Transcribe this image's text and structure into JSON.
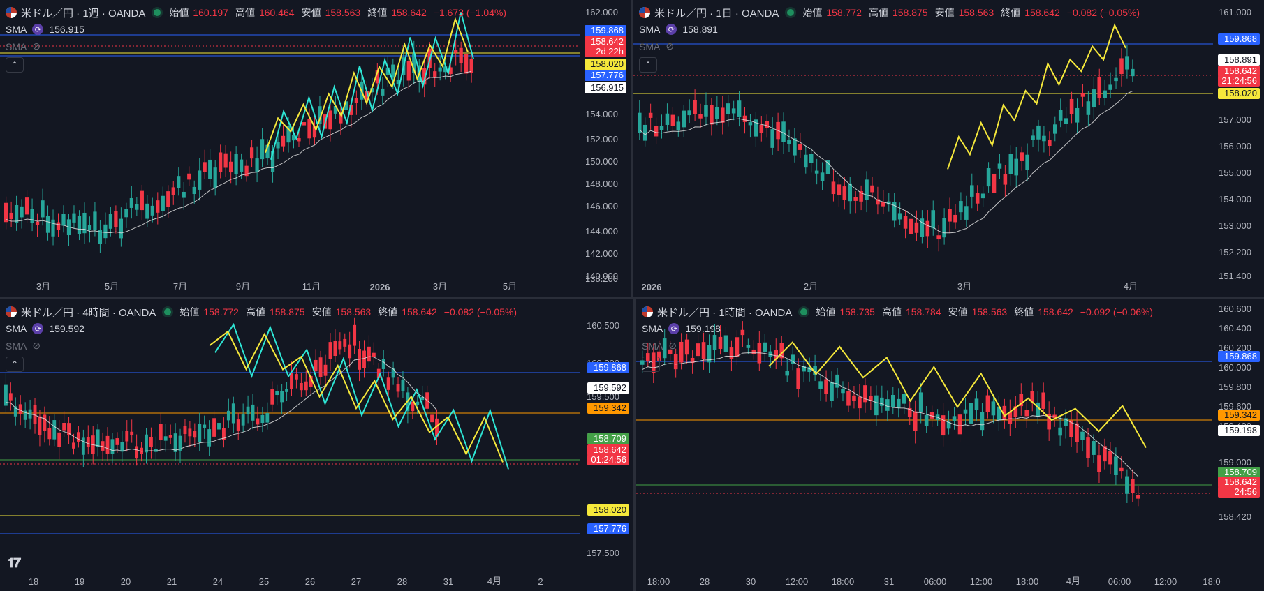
{
  "panes": [
    {
      "id": "weekly",
      "symbol": "米ドル／円 · 1週 · OANDA",
      "ohlc": {
        "open_label": "始値",
        "open": "160.197",
        "high_label": "高値",
        "high": "160.464",
        "low_label": "安値",
        "low": "158.563",
        "close_label": "終値",
        "close": "158.642",
        "change": "−1.673 (−1.04%)"
      },
      "sma1": {
        "label": "SMA",
        "value": "156.915"
      },
      "sma2": {
        "label": "SMA"
      },
      "price_axis": [
        "162.000",
        "154.000",
        "152.000",
        "150.000",
        "148.000",
        "146.000",
        "144.000",
        "142.000",
        "140.000",
        "138.200"
      ],
      "time_axis": [
        "3月",
        "5月",
        "7月",
        "9月",
        "11月",
        "2026",
        "3月",
        "5月"
      ],
      "tags": [
        {
          "text": "159.868",
          "bg": "#2962ff",
          "fg": "#ffffff"
        },
        {
          "text": "158.642",
          "bg": "#f23645",
          "fg": "#ffffff"
        },
        {
          "text": "2d 22h",
          "bg": "#f23645",
          "fg": "#ffffff"
        },
        {
          "text": "158.020",
          "bg": "#f5e83b",
          "fg": "#131722"
        },
        {
          "text": "157.776",
          "bg": "#2962ff",
          "fg": "#ffffff"
        },
        {
          "text": "156.915",
          "bg": "#ffffff",
          "fg": "#131722"
        }
      ]
    },
    {
      "id": "daily",
      "symbol": "米ドル／円 · 1日 · OANDA",
      "ohlc": {
        "open_label": "始値",
        "open": "158.772",
        "high_label": "高値",
        "high": "158.875",
        "low_label": "安値",
        "low": "158.563",
        "close_label": "終値",
        "close": "158.642",
        "change": "−0.082 (−0.05%)"
      },
      "sma1": {
        "label": "SMA",
        "value": "158.891"
      },
      "sma2": {
        "label": "SMA"
      },
      "price_axis": [
        "161.000",
        "157.000",
        "156.000",
        "155.000",
        "154.000",
        "153.000",
        "152.200",
        "151.400"
      ],
      "time_axis": [
        "2026",
        "2月",
        "3月",
        "4月"
      ],
      "tags": [
        {
          "text": "159.868",
          "bg": "#2962ff",
          "fg": "#ffffff"
        },
        {
          "text": "158.891",
          "bg": "#ffffff",
          "fg": "#131722"
        },
        {
          "text": "158.642",
          "bg": "#f23645",
          "fg": "#ffffff"
        },
        {
          "text": "21:24:56",
          "bg": "#f23645",
          "fg": "#ffffff"
        },
        {
          "text": "158.020",
          "bg": "#f5e83b",
          "fg": "#131722"
        }
      ]
    },
    {
      "id": "h4",
      "symbol": "米ドル／円 · 4時間 · OANDA",
      "ohlc": {
        "open_label": "始値",
        "open": "158.772",
        "high_label": "高値",
        "high": "158.875",
        "low_label": "安値",
        "low": "158.563",
        "close_label": "終値",
        "close": "158.642",
        "change": "−0.082 (−0.05%)"
      },
      "sma1": {
        "label": "SMA",
        "value": "159.592"
      },
      "sma2": {
        "label": "SMA"
      },
      "price_axis": [
        "160.500",
        "160.000",
        "159.500",
        "159.000",
        "157.500"
      ],
      "time_axis": [
        "18",
        "19",
        "20",
        "21",
        "24",
        "25",
        "26",
        "27",
        "28",
        "31",
        "4月",
        "2"
      ],
      "tags": [
        {
          "text": "159.868",
          "bg": "#2962ff",
          "fg": "#ffffff"
        },
        {
          "text": "159.592",
          "bg": "#ffffff",
          "fg": "#131722"
        },
        {
          "text": "159.342",
          "bg": "#ff9800",
          "fg": "#131722"
        },
        {
          "text": "158.709",
          "bg": "#43a047",
          "fg": "#ffffff"
        },
        {
          "text": "158.642",
          "bg": "#f23645",
          "fg": "#ffffff"
        },
        {
          "text": "01:24:56",
          "bg": "#f23645",
          "fg": "#ffffff"
        },
        {
          "text": "158.020",
          "bg": "#f5e83b",
          "fg": "#131722"
        },
        {
          "text": "157.776",
          "bg": "#2962ff",
          "fg": "#ffffff"
        }
      ]
    },
    {
      "id": "h1",
      "symbol": "米ドル／円 · 1時間 · OANDA",
      "ohlc": {
        "open_label": "始値",
        "open": "158.735",
        "high_label": "高値",
        "high": "158.784",
        "low_label": "安値",
        "low": "158.563",
        "close_label": "終値",
        "close": "158.642",
        "change": "−0.092 (−0.06%)"
      },
      "sma1": {
        "label": "SMA",
        "value": "159.198"
      },
      "sma2": {
        "label": "SMA"
      },
      "price_axis": [
        "160.600",
        "160.400",
        "160.200",
        "160.000",
        "159.800",
        "159.600",
        "159.400",
        "159.000",
        "158.800",
        "158.420"
      ],
      "time_axis": [
        "18:00",
        "28",
        "30",
        "12:00",
        "18:00",
        "31",
        "06:00",
        "12:00",
        "18:00",
        "4月",
        "06:00",
        "12:00",
        "18:0"
      ],
      "tags": [
        {
          "text": "159.868",
          "bg": "#2962ff",
          "fg": "#ffffff"
        },
        {
          "text": "159.342",
          "bg": "#ff9800",
          "fg": "#131722"
        },
        {
          "text": "159.198",
          "bg": "#ffffff",
          "fg": "#131722"
        },
        {
          "text": "158.709",
          "bg": "#43a047",
          "fg": "#ffffff"
        },
        {
          "text": "158.642",
          "bg": "#f23645",
          "fg": "#ffffff"
        },
        {
          "text": "24:56",
          "bg": "#f23645",
          "fg": "#ffffff"
        }
      ]
    }
  ],
  "colors": {
    "up": "#26a69a",
    "down": "#f23645",
    "bg": "#131722",
    "zigzag_yellow": "#f5e83b",
    "zigzag_cyan": "#2ee6d6",
    "sma_line": "#e0e0e0"
  }
}
